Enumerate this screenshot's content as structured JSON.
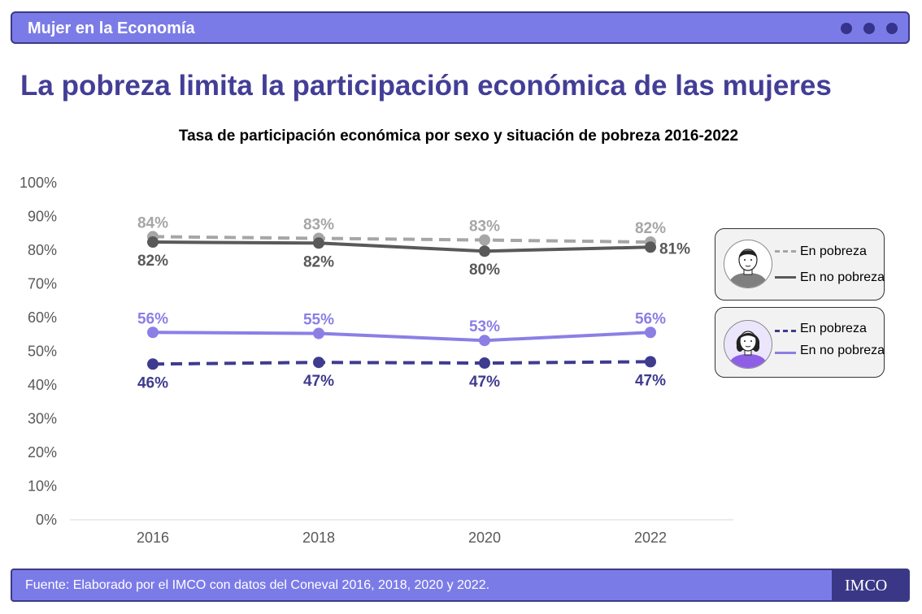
{
  "header": {
    "title": "Mujer en la Economía"
  },
  "page_title": "La pobreza limita la participación económica de las mujeres",
  "footer": {
    "source": "Fuente:  Elaborado por el IMCO con datos del Coneval 2016, 2018, 2020 y 2022.",
    "logo": "IMCO"
  },
  "legend": {
    "men": {
      "poor": "En pobreza",
      "nonpoor": "En no pobreza"
    },
    "women": {
      "poor": "En pobreza",
      "nonpoor": "En no pobreza"
    }
  },
  "colors": {
    "men_poor": "#a6a6a6",
    "men_nonpoor": "#595959",
    "women_poor": "#3f3b8e",
    "women_nonpoor": "#8b7fe6",
    "header": "#7b7be8",
    "title": "#433e96"
  },
  "chart_data": {
    "type": "line",
    "title": "Tasa de participación económica por sexo y situación de pobreza 2016-2022",
    "categories": [
      "2016",
      "2018",
      "2020",
      "2022"
    ],
    "ylim": [
      0,
      100
    ],
    "yticks": [
      "0%",
      "10%",
      "20%",
      "30%",
      "40%",
      "50%",
      "60%",
      "70%",
      "80%",
      "90%",
      "100%"
    ],
    "grid": false,
    "legend_position": "right",
    "series": [
      {
        "group": "men",
        "name": "En pobreza",
        "values": [
          84,
          83.5,
          83,
          82.4
        ],
        "labels": [
          "84%",
          "83%",
          "83%",
          "82%"
        ],
        "label_pos": "above",
        "dash": true
      },
      {
        "group": "men",
        "name": "En no pobreza",
        "values": [
          82.4,
          82.1,
          79.7,
          80.9
        ],
        "labels": [
          "82%",
          "82%",
          "80%",
          "81%"
        ],
        "label_pos": "below",
        "dash": false
      },
      {
        "group": "women",
        "name": "En no pobreza",
        "values": [
          55.6,
          55.3,
          53.2,
          55.6
        ],
        "labels": [
          "56%",
          "55%",
          "53%",
          "56%"
        ],
        "label_pos": "above",
        "dash": false
      },
      {
        "group": "women",
        "name": "En pobreza",
        "values": [
          46.2,
          46.7,
          46.5,
          46.9
        ],
        "labels": [
          "46%",
          "47%",
          "47%",
          "47%"
        ],
        "label_pos": "below",
        "dash": true
      }
    ]
  }
}
